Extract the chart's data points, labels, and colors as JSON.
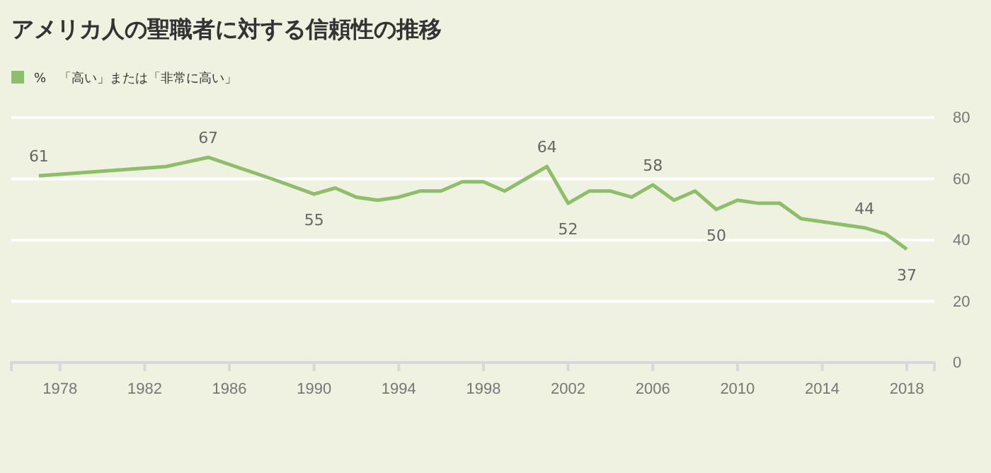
{
  "chart_data": {
    "type": "line",
    "title": "アメリカ人の聖職者に対する信頼性の推移",
    "x": [
      1977,
      1983,
      1985,
      1988,
      1990,
      1991,
      1992,
      1993,
      1994,
      1995,
      1996,
      1997,
      1998,
      1999,
      2000,
      2001,
      2002,
      2003,
      2004,
      2005,
      2006,
      2007,
      2008,
      2009,
      2010,
      2011,
      2012,
      2013,
      2016,
      2017,
      2018
    ],
    "series": [
      {
        "name": "%　「高い」または「非常に高い」",
        "color": "#8dbf6a",
        "values": [
          61,
          64,
          67,
          60,
          55,
          57,
          54,
          53,
          54,
          56,
          56,
          59,
          59,
          56,
          60,
          64,
          52,
          56,
          56,
          54,
          58,
          53,
          56,
          50,
          53,
          52,
          52,
          47,
          44,
          42,
          37
        ]
      }
    ],
    "annotations": [
      {
        "text": "61",
        "x": 1977,
        "y": 61
      },
      {
        "text": "67",
        "x": 1985,
        "y": 67
      },
      {
        "text": "55",
        "x": 1990,
        "y": 55
      },
      {
        "text": "64",
        "x": 2001,
        "y": 64
      },
      {
        "text": "52",
        "x": 2002,
        "y": 52
      },
      {
        "text": "58",
        "x": 2006,
        "y": 58
      },
      {
        "text": "50",
        "x": 2009,
        "y": 50
      },
      {
        "text": "44",
        "x": 2016,
        "y": 44
      },
      {
        "text": "37",
        "x": 2018,
        "y": 37
      }
    ],
    "xlim": [
      1975.7,
      2019.3
    ],
    "xticks": [
      1978,
      1982,
      1986,
      1990,
      1994,
      1998,
      2002,
      2006,
      2010,
      2014,
      2018
    ],
    "ylim": [
      0,
      80
    ],
    "yticks": [
      0,
      20,
      40,
      60,
      80
    ],
    "grid": "y",
    "legend": "top left",
    "marker": "none",
    "line_style": "solid"
  }
}
